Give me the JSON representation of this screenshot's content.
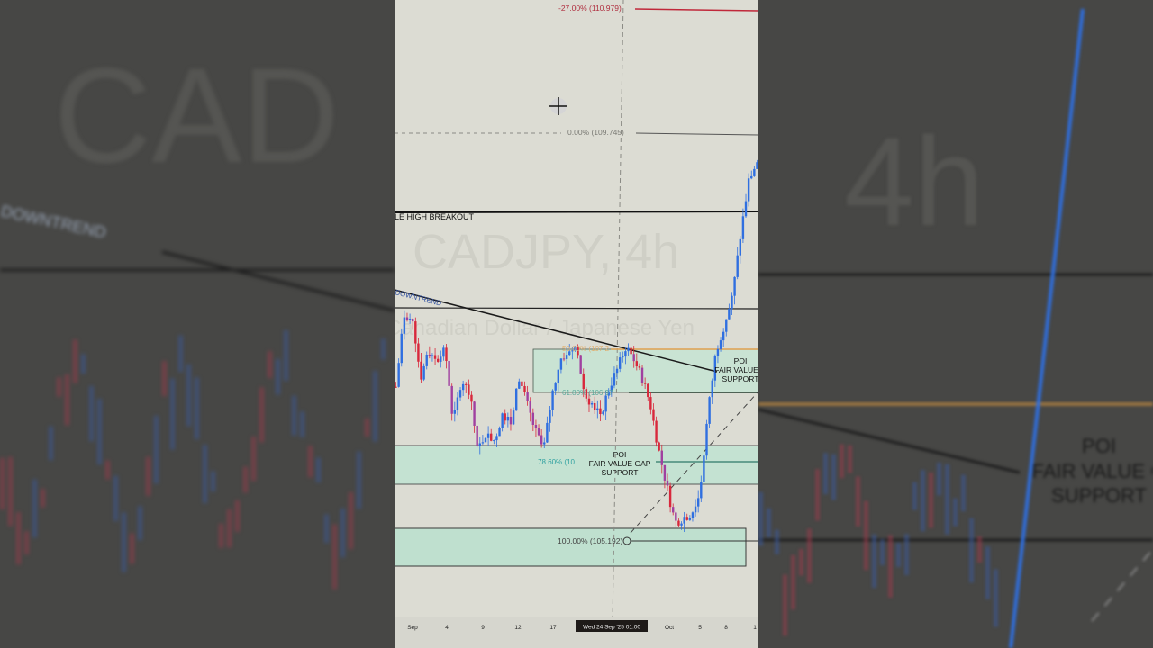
{
  "video": {
    "layout": "vertical short with blurred side panels"
  },
  "chart": {
    "symbol_watermark": "CADJPY, 4h",
    "description_watermark": "Canadian Dollar / Japanese Yen",
    "fib_levels": {
      "neg27": "-27.00% (110.979)",
      "zero": "0.00% (109.745)",
      "fifty": "50.00% (107.2",
      "sixty_one": "61.80% (106.97",
      "seventy_eight": "78.60% (10",
      "hundred": "100.00% (105.192)"
    },
    "labels": {
      "high_breakout": "LE HIGH BREAKOUT",
      "downtrend": "DOWNTREND",
      "poi_top": {
        "line1": "POI",
        "line2": "FAIR VALUE G",
        "line3": "SUPPORT"
      },
      "poi_mid": {
        "line1": "POI",
        "line2": "FAIR VALUE GAP",
        "line3": "SUPPORT"
      }
    },
    "x_axis": [
      "Sep",
      "4",
      "9",
      "12",
      "17",
      "Oct",
      "5",
      "8",
      "1"
    ],
    "crosshair_time": "Wed 24 Sep '25  01:00",
    "price_path": [
      106.91,
      107.71,
      107.71,
      107.01,
      107.31,
      107.21,
      107.31,
      106.51,
      107.01,
      106.81,
      106.21,
      106.41,
      106.31,
      106.61,
      106.51,
      107.01,
      106.71,
      106.41,
      106.21,
      106.81,
      107.21,
      107.31,
      107.36,
      106.81,
      106.71,
      106.61,
      106.91,
      107.11,
      107.36,
      107.21,
      107.01,
      106.71,
      106.21,
      105.8,
      105.4,
      105.45,
      105.5,
      105.7,
      106.61,
      107.31,
      107.61,
      107.91,
      108.61,
      109.21,
      109.41
    ],
    "colors": {
      "up": "#2f6fe0",
      "down": "#d8283c",
      "zone": "#bfe0cf",
      "fib_neg": "#c0283a",
      "fib_50": "#e0a050",
      "fib_618": "#2e9a8a"
    }
  },
  "side_panels": {
    "left_watermark": "CAD",
    "left_downtrend": "DOWNTREND",
    "right_watermark": "4h",
    "right_poi": {
      "line1": "POI",
      "line2": "FAIR VALUE G",
      "line3": "SUPPORT"
    }
  }
}
